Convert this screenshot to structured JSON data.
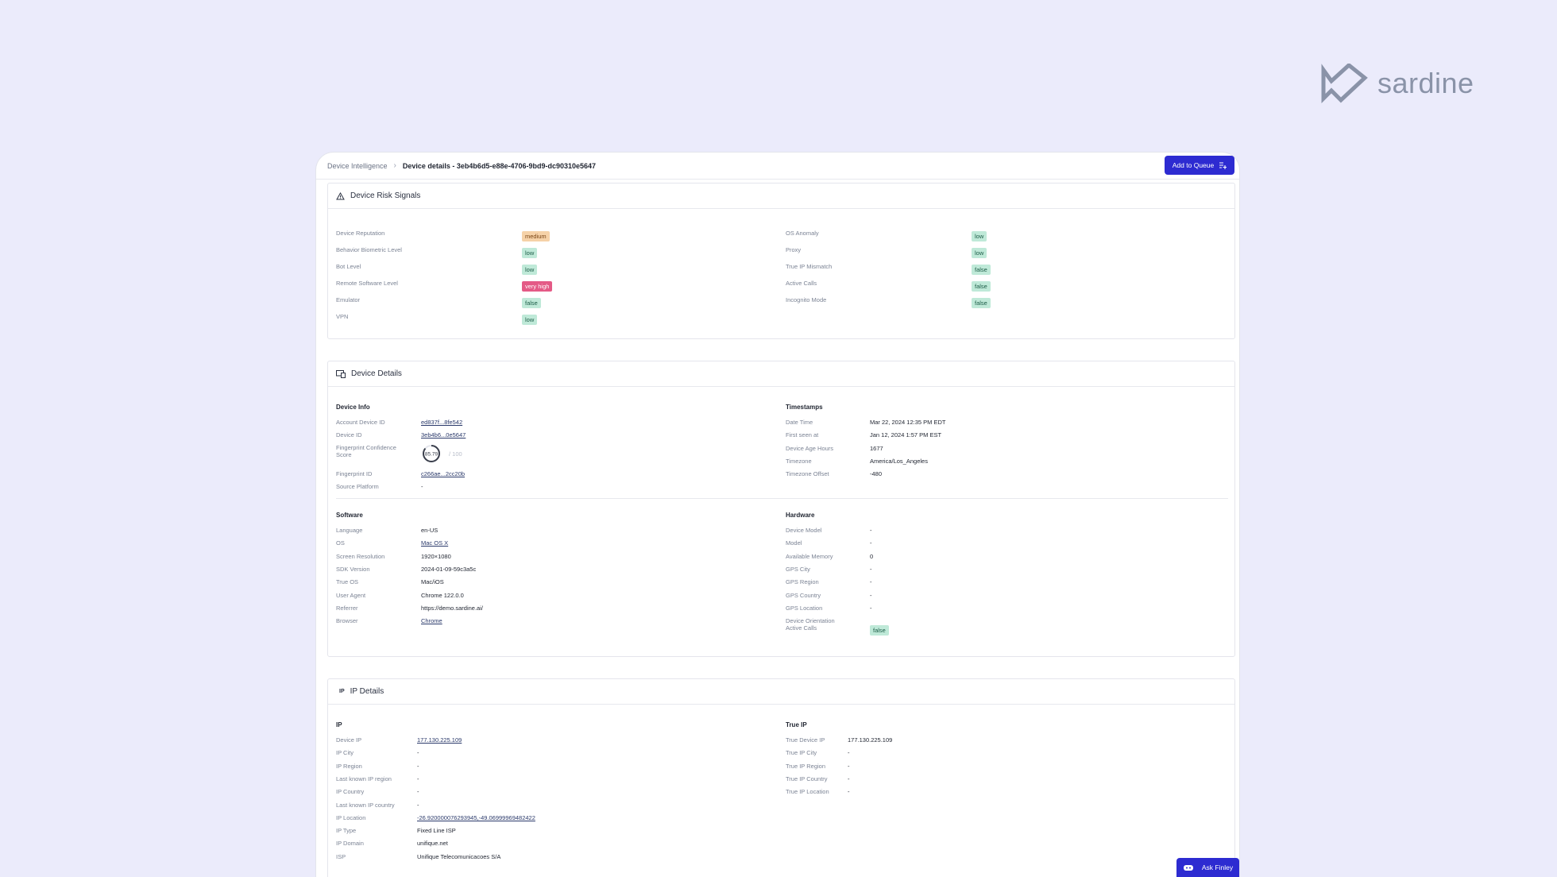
{
  "brand": {
    "name": "sardine"
  },
  "breadcrumb": {
    "parent": "Device Intelligence",
    "separator": "›",
    "current": "Device details - 3eb4b6d5-e88e-4706-9bd9-dc90310e5647"
  },
  "actions": {
    "add_to_queue": "Add to Queue",
    "ask_finley": "Ask Finley"
  },
  "risk": {
    "title": "Device Risk Signals",
    "left": [
      {
        "label": "Device Reputation",
        "value": "medium",
        "tone": "orange"
      },
      {
        "label": "Behavior Biometric Level",
        "value": "low",
        "tone": "green"
      },
      {
        "label": "Bot Level",
        "value": "low",
        "tone": "green"
      },
      {
        "label": "Remote Software Level",
        "value": "very high",
        "tone": "red"
      },
      {
        "label": "Emulator",
        "value": "false",
        "tone": "green"
      },
      {
        "label": "VPN",
        "value": "low",
        "tone": "green"
      }
    ],
    "right": [
      {
        "label": "OS Anomaly",
        "value": "low",
        "tone": "green"
      },
      {
        "label": "Proxy",
        "value": "low",
        "tone": "green"
      },
      {
        "label": "True IP Mismatch",
        "value": "false",
        "tone": "green"
      },
      {
        "label": "Active Calls",
        "value": "false",
        "tone": "green"
      },
      {
        "label": "Incognito Mode",
        "value": "false",
        "tone": "green"
      }
    ]
  },
  "details": {
    "title": "Device Details",
    "device_info": {
      "heading": "Device Info",
      "account_device_id_label": "Account Device ID",
      "account_device_id": "ed837f...8fe542",
      "device_id_label": "Device ID",
      "device_id": "3eb4b6...0e5647",
      "fingerprint_score_label_1": "Fingerprint Confidence",
      "fingerprint_score_label_2": "Score",
      "fingerprint_score": "85.79",
      "fingerprint_score_max": "/ 100",
      "fingerprint_score_fraction": 0.8579,
      "fingerprint_id_label": "Fingerprint ID",
      "fingerprint_id": "c266ae...2cc20b",
      "source_platform_label": "Source Platform",
      "source_platform": "-"
    },
    "timestamps": {
      "heading": "Timestamps",
      "rows": [
        {
          "label": "Date Time",
          "value": "Mar 22, 2024 12:35 PM EDT"
        },
        {
          "label": "First seen at",
          "value": "Jan 12, 2024 1:57 PM EST"
        },
        {
          "label": "Device Age Hours",
          "value": "1677"
        },
        {
          "label": "Timezone",
          "value": "America/Los_Angeles"
        },
        {
          "label": "Timezone Offset",
          "value": "-480"
        }
      ]
    },
    "software": {
      "heading": "Software",
      "rows": [
        {
          "label": "Language",
          "value": "en-US",
          "link": false
        },
        {
          "label": "OS",
          "value": "Mac OS X",
          "link": true
        },
        {
          "label": "Screen Resolution",
          "value": "1920×1080",
          "link": false
        },
        {
          "label": "SDK Version",
          "value": "2024-01-09-59c3a5c",
          "link": false
        },
        {
          "label": "True OS",
          "value": "Mac/iOS",
          "link": false
        },
        {
          "label": "User Agent",
          "value": "Chrome 122.0.0",
          "link": false
        },
        {
          "label": "Referrer",
          "value": "https://demo.sardine.ai/",
          "link": false
        },
        {
          "label": "Browser",
          "value": "Chrome",
          "link": true
        }
      ]
    },
    "hardware": {
      "heading": "Hardware",
      "rows": [
        {
          "label": "Device Model",
          "value": "-"
        },
        {
          "label": "Model",
          "value": "-"
        },
        {
          "label": "Available Memory",
          "value": "0"
        },
        {
          "label": "GPS City",
          "value": "-"
        },
        {
          "label": "GPS Region",
          "value": "-"
        },
        {
          "label": "GPS Country",
          "value": "-"
        },
        {
          "label": "GPS Location",
          "value": "-"
        },
        {
          "label": "Device Orientation",
          "value": ""
        }
      ],
      "active_calls_label": "Active Calls",
      "active_calls": "false"
    }
  },
  "ip": {
    "title": "IP Details",
    "icon_text": "IP",
    "ip_block": {
      "heading": "IP",
      "rows": [
        {
          "label": "Device IP",
          "value": "177.130.225.109",
          "link": true
        },
        {
          "label": "IP City",
          "value": "-",
          "link": false
        },
        {
          "label": "IP Region",
          "value": "-",
          "link": false
        },
        {
          "label": "Last known IP region",
          "value": "-",
          "link": false
        },
        {
          "label": "IP Country",
          "value": "-",
          "link": false
        },
        {
          "label": "Last known IP country",
          "value": "-",
          "link": false
        },
        {
          "label": "IP Location",
          "value": "-26.920000076293945,-49.06999969482422",
          "link": true
        },
        {
          "label": "IP Type",
          "value": "Fixed Line ISP",
          "link": false
        },
        {
          "label": "IP Domain",
          "value": "unifique.net",
          "link": false
        },
        {
          "label": "ISP",
          "value": "Unifique Telecomunicacoes S/A",
          "link": false
        }
      ]
    },
    "true_ip": {
      "heading": "True IP",
      "rows": [
        {
          "label": "True Device IP",
          "value": "177.130.225.109"
        },
        {
          "label": "True IP City",
          "value": "-"
        },
        {
          "label": "True IP Region",
          "value": "-"
        },
        {
          "label": "True IP Country",
          "value": "-"
        },
        {
          "label": "True IP Location",
          "value": "-"
        }
      ]
    }
  }
}
